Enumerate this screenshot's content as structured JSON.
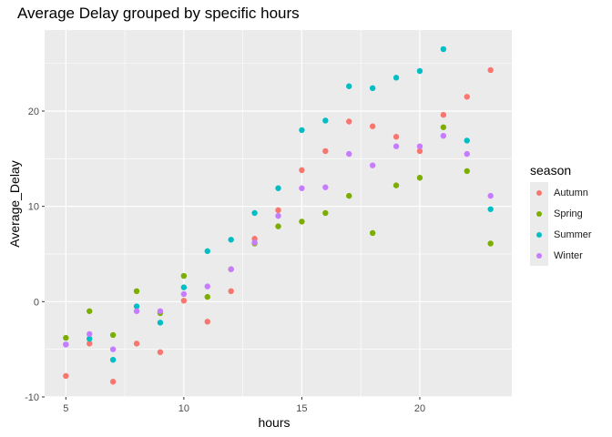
{
  "chart_data": {
    "type": "scatter",
    "title": "Average Delay grouped by specific hours",
    "xlabel": "hours",
    "ylabel": "Average_Delay",
    "xlim": [
      4.1,
      23.9
    ],
    "ylim": [
      -10.0,
      28.5
    ],
    "xticks": [
      5,
      10,
      15,
      20
    ],
    "yticks": [
      -10,
      0,
      10,
      20
    ],
    "xtick_labels": [
      "5",
      "10",
      "15",
      "20"
    ],
    "ytick_labels": [
      "-10",
      "0",
      "10",
      "20"
    ],
    "grid": true,
    "legend": {
      "title": "season",
      "position": "right"
    },
    "series": [
      {
        "name": "Autumn",
        "color": "#F8766D",
        "x": [
          5,
          6,
          7,
          8,
          9,
          10,
          11,
          12,
          13,
          14,
          15,
          16,
          17,
          18,
          19,
          20,
          21,
          22,
          23
        ],
        "y": [
          -7.8,
          -4.4,
          -8.4,
          -4.4,
          -5.3,
          0.1,
          -2.1,
          1.1,
          6.6,
          9.6,
          13.8,
          15.8,
          18.9,
          18.4,
          17.3,
          15.8,
          19.6,
          21.5,
          24.3
        ]
      },
      {
        "name": "Spring",
        "color": "#7CAE00",
        "x": [
          5,
          6,
          7,
          8,
          9,
          10,
          11,
          12,
          13,
          14,
          15,
          16,
          17,
          18,
          19,
          20,
          21,
          22,
          23
        ],
        "y": [
          -3.8,
          -1.0,
          -3.5,
          1.1,
          -1.2,
          2.7,
          0.5,
          3.4,
          6.1,
          7.9,
          8.4,
          9.3,
          11.1,
          7.2,
          12.2,
          13.0,
          18.3,
          13.7,
          6.1
        ]
      },
      {
        "name": "Summer",
        "color": "#00BFC4",
        "x": [
          5,
          6,
          7,
          8,
          9,
          10,
          11,
          12,
          13,
          14,
          15,
          16,
          17,
          18,
          19,
          20,
          21,
          22,
          23
        ],
        "y": [
          -4.5,
          -3.9,
          -6.1,
          -0.5,
          -2.2,
          1.5,
          5.3,
          6.5,
          9.3,
          11.9,
          18.0,
          19.0,
          22.6,
          22.4,
          23.5,
          24.2,
          26.5,
          16.9,
          9.7
        ]
      },
      {
        "name": "Winter",
        "color": "#C77CFF",
        "x": [
          5,
          6,
          7,
          8,
          9,
          10,
          11,
          12,
          13,
          14,
          15,
          16,
          17,
          18,
          19,
          20,
          21,
          22,
          23
        ],
        "y": [
          -4.5,
          -3.4,
          -5.0,
          -1.0,
          -1.0,
          0.8,
          1.6,
          3.4,
          6.2,
          9.0,
          11.9,
          12.0,
          15.5,
          14.3,
          16.3,
          16.3,
          17.4,
          15.5,
          11.1
        ]
      }
    ]
  }
}
